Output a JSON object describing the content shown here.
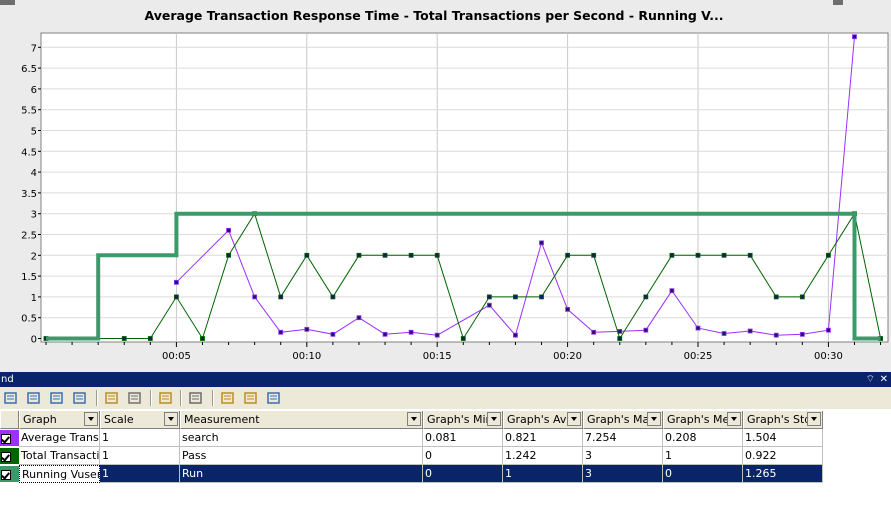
{
  "chart_data": {
    "type": "line",
    "title": "Average Transaction Response Time - Total Transactions per Second - Running V...",
    "y_ticks": [
      "0",
      "0.5",
      "1",
      "1.5",
      "2",
      "2.5",
      "3",
      "3.5",
      "4",
      "4.5",
      "5",
      "5.5",
      "6",
      "6.5",
      "7"
    ],
    "ylim": [
      0,
      7.4
    ],
    "x_ticks": [
      "00:05",
      "00:10",
      "00:15",
      "00:20",
      "00:25",
      "00:30"
    ],
    "x_tick_values": [
      5,
      10,
      15,
      20,
      25,
      30
    ],
    "xlim": [
      0,
      32
    ],
    "grid": true,
    "series": [
      {
        "name": "Average Transaction Response Time",
        "color": "#9b30ff",
        "line": "thin",
        "markers": true,
        "x": [
          5,
          7,
          8,
          9,
          10,
          11,
          12,
          13,
          14,
          15,
          17,
          18,
          19,
          20,
          21,
          22,
          23,
          24,
          25,
          26,
          27,
          28,
          29,
          30,
          31
        ],
        "y": [
          1.35,
          2.6,
          1.0,
          0.15,
          0.22,
          0.1,
          0.5,
          0.1,
          0.15,
          0.08,
          0.8,
          0.08,
          2.3,
          0.7,
          0.15,
          0.17,
          0.2,
          1.15,
          0.25,
          0.12,
          0.18,
          0.08,
          0.1,
          0.2,
          7.254
        ]
      },
      {
        "name": "Total Transactions per Second",
        "color": "#006400",
        "line": "thin",
        "markers": true,
        "x": [
          0,
          3,
          4,
          5,
          6,
          7,
          8,
          9,
          10,
          11,
          12,
          13,
          14,
          15,
          16,
          17,
          18,
          19,
          20,
          21,
          22,
          23,
          24,
          25,
          26,
          27,
          28,
          29,
          30,
          31,
          32
        ],
        "y": [
          0,
          0,
          0,
          1,
          0,
          2,
          3,
          1,
          2,
          1,
          2,
          2,
          2,
          2,
          0,
          1,
          1,
          1,
          2,
          2,
          0,
          1,
          2,
          2,
          2,
          2,
          1,
          1,
          2,
          3,
          0
        ]
      },
      {
        "name": "Running Vusers",
        "color": "#3a9a6a",
        "line": "thick-step",
        "markers": false,
        "x": [
          0,
          2,
          2,
          5,
          5,
          31,
          31,
          32
        ],
        "y": [
          0,
          0,
          2,
          2,
          3,
          3,
          0,
          0
        ]
      }
    ]
  },
  "legend": {
    "title_fragment": "nd",
    "pin": "⌔",
    "close": "✕",
    "columns": [
      {
        "key": "graph",
        "label": "Graph"
      },
      {
        "key": "scale",
        "label": "Scale"
      },
      {
        "key": "measurement",
        "label": "Measurement"
      },
      {
        "key": "min",
        "label": "Graph's Mini"
      },
      {
        "key": "avg",
        "label": "Graph's Ave"
      },
      {
        "key": "max",
        "label": "Graph's Max"
      },
      {
        "key": "median",
        "label": "Graph's Med"
      },
      {
        "key": "std",
        "label": "Graph's Std."
      }
    ],
    "rows": [
      {
        "color": "#9b30ff",
        "graph": "Average Transa",
        "scale": "1",
        "measurement": "search",
        "min": "0.081",
        "avg": "0.821",
        "max": "7.254",
        "median": "0.208",
        "std": "1.504",
        "selected": false
      },
      {
        "color": "#006400",
        "graph": "Total Transactic",
        "scale": "1",
        "measurement": "Pass",
        "min": "0",
        "avg": "1.242",
        "max": "3",
        "median": "1",
        "std": "0.922",
        "selected": false
      },
      {
        "color": "#3a9a6a",
        "graph": "Running Vusers",
        "scale": "1",
        "measurement": "Run",
        "min": "0",
        "avg": "1",
        "max": "3",
        "median": "0",
        "std": "1.265",
        "selected": true
      }
    ]
  },
  "toolbar_icons": [
    "legend-settings-icon",
    "configure-columns-icon",
    "show-hide-icon",
    "filter-icon",
    "export-icon",
    "copy-icon",
    "print-preview-icon",
    "columns-icon",
    "legend-icon-a",
    "legend-icon-b",
    "legend-icon-c"
  ]
}
